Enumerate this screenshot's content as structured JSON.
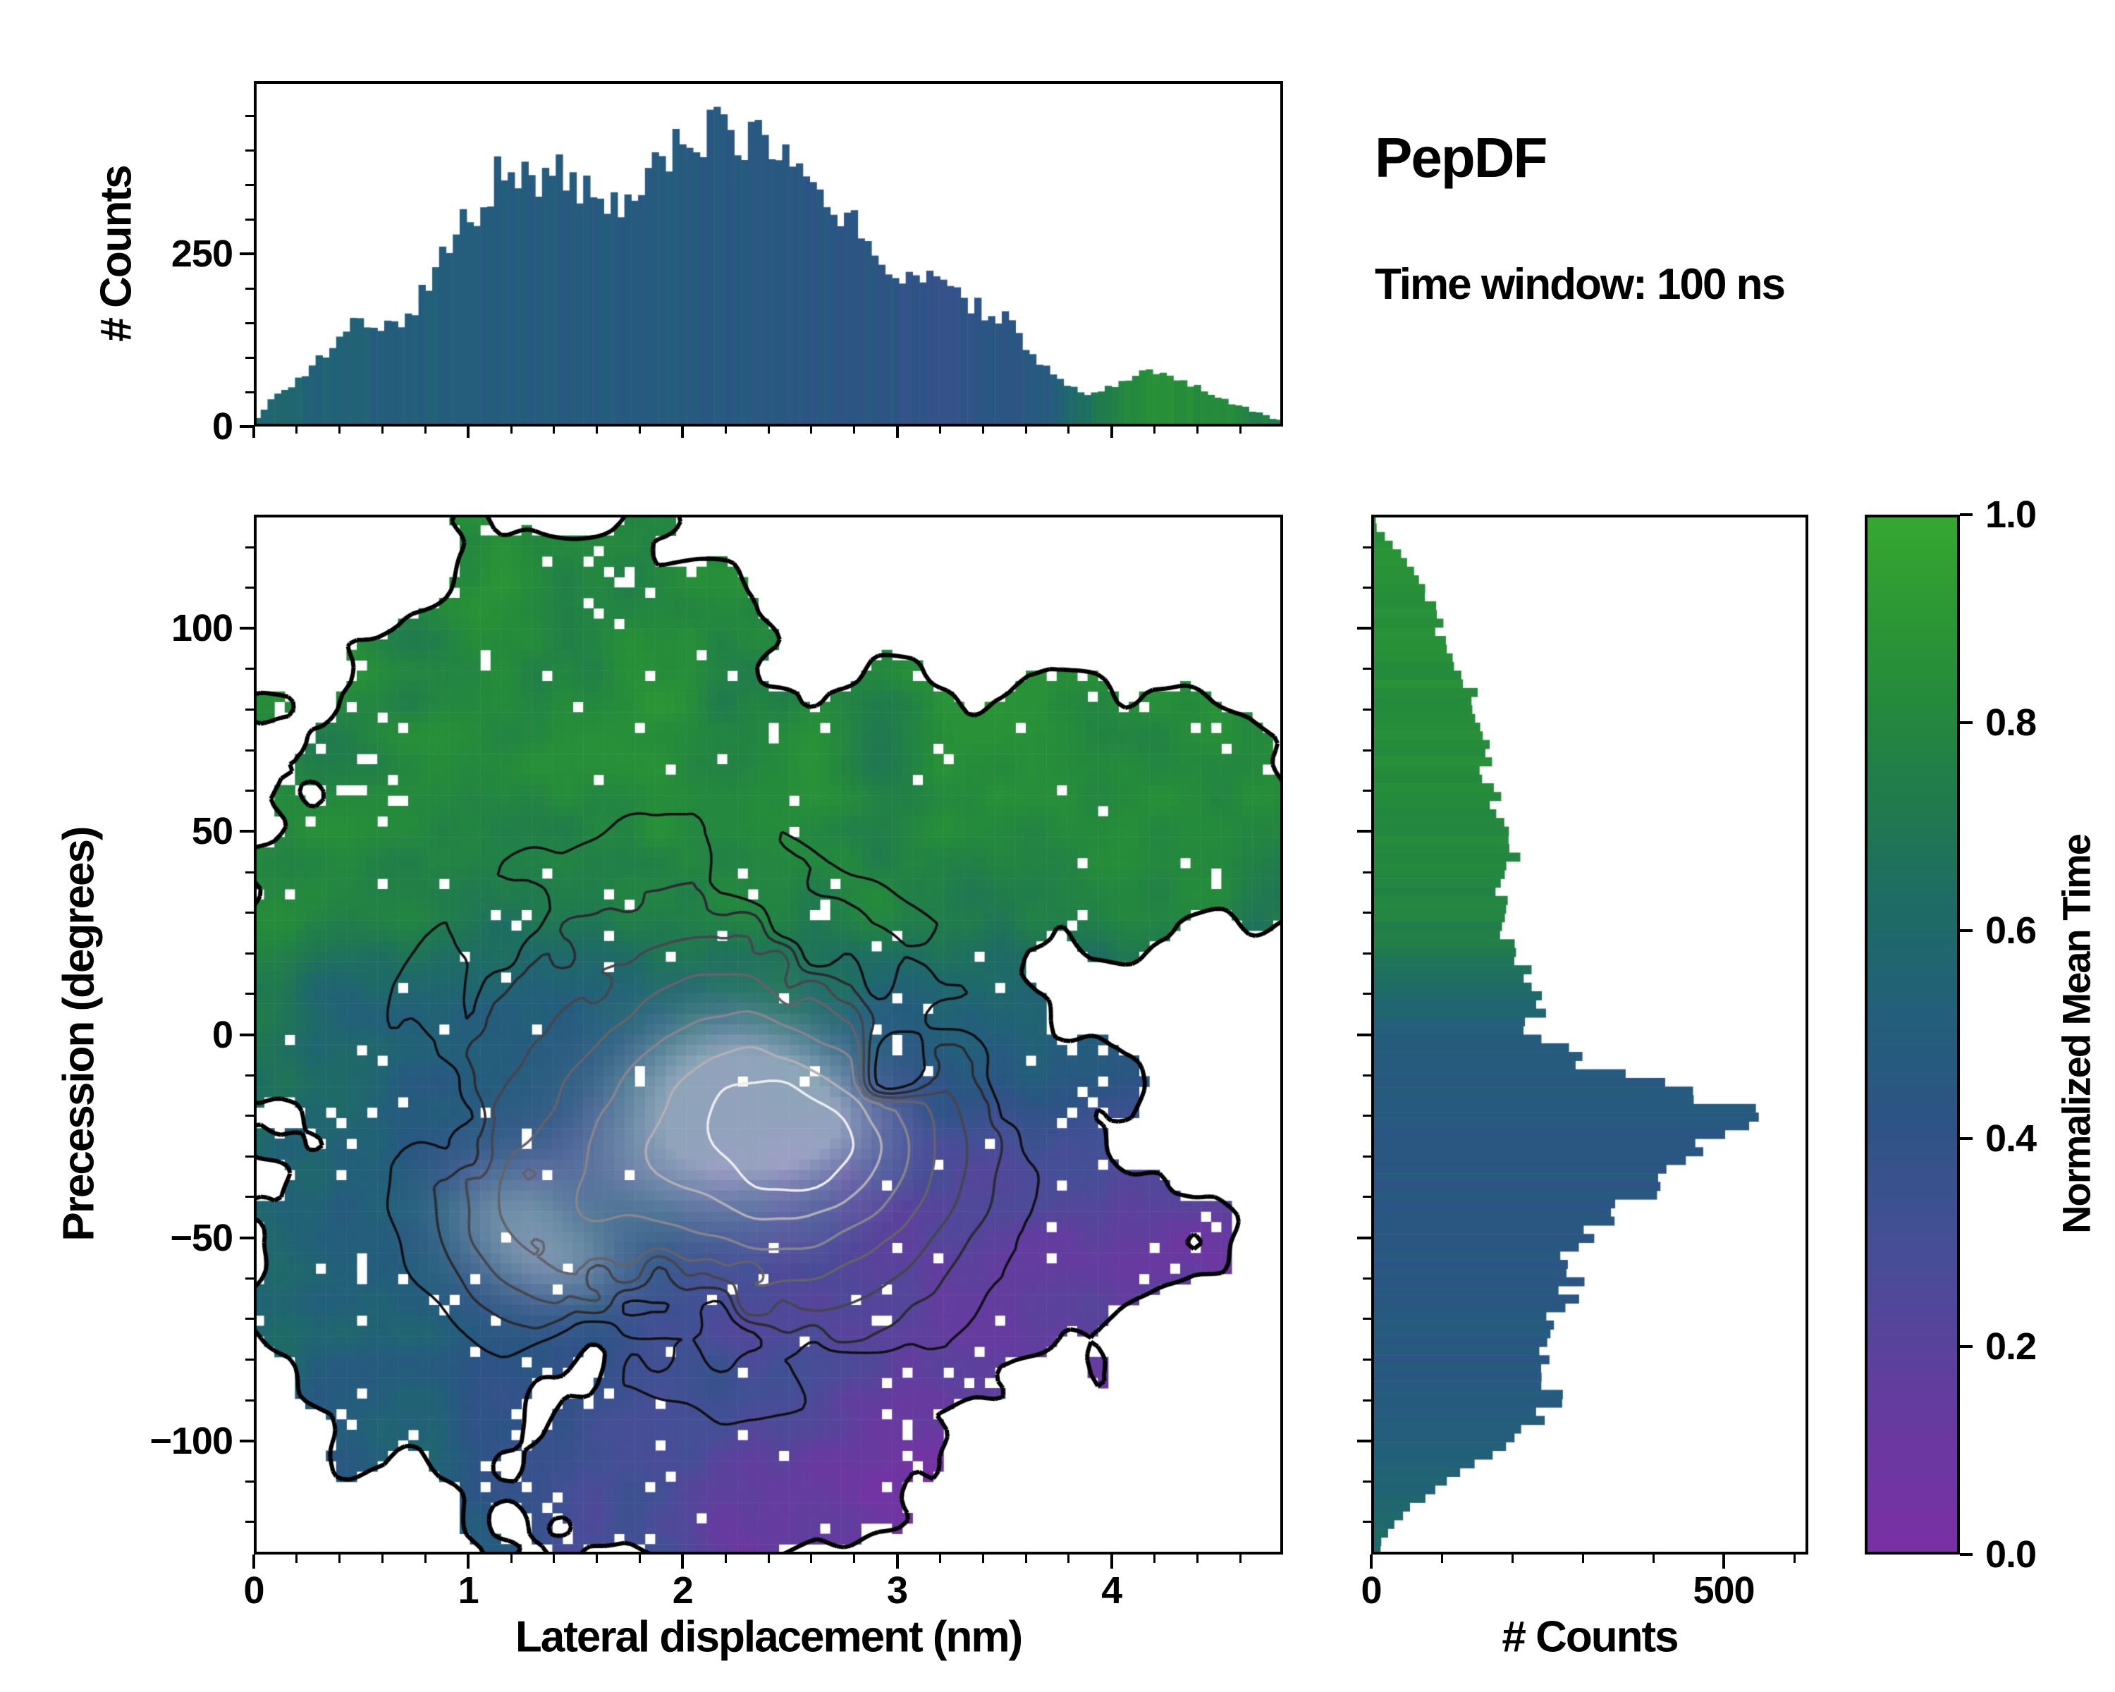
{
  "figure": {
    "title": "PepDF",
    "subtitle": "Time window: 100 ns",
    "background": "#ffffff",
    "text_color": "#000000"
  },
  "colormap": {
    "stops": [
      [
        0,
        "#7b2fa4"
      ],
      [
        0.15,
        "#643c9f"
      ],
      [
        0.3,
        "#454f96"
      ],
      [
        0.42,
        "#2c5484"
      ],
      [
        0.52,
        "#235f7b"
      ],
      [
        0.62,
        "#1e6b66"
      ],
      [
        0.72,
        "#207a4e"
      ],
      [
        0.82,
        "#258a3c"
      ],
      [
        0.92,
        "#2d9a34"
      ],
      [
        1,
        "#36a831"
      ]
    ]
  },
  "colorbar": {
    "label": "Normalized Mean Time",
    "min": 0,
    "max": 1,
    "ticks": [
      [
        0,
        "0.0"
      ],
      [
        0.2,
        "0.2"
      ],
      [
        0.4,
        "0.4"
      ],
      [
        0.6,
        "0.6"
      ],
      [
        0.8,
        "0.8"
      ],
      [
        1,
        "1.0"
      ]
    ]
  },
  "chart_data": [
    {
      "id": "top_histogram",
      "type": "bar",
      "ylabel": "# Counts",
      "xlim": [
        0,
        4.8
      ],
      "ylim": [
        0,
        500
      ],
      "yticks": [
        [
          0,
          "0"
        ],
        [
          250,
          "250"
        ]
      ],
      "bins": 150,
      "color_by": "Normalized Mean Time",
      "seed": 505,
      "envelope": [
        [
          0,
          8
        ],
        [
          0.05,
          25
        ],
        [
          0.1,
          45
        ],
        [
          0.15,
          55
        ],
        [
          0.2,
          65
        ],
        [
          0.25,
          80
        ],
        [
          0.3,
          95
        ],
        [
          0.35,
          110
        ],
        [
          0.4,
          130
        ],
        [
          0.45,
          150
        ],
        [
          0.5,
          172
        ],
        [
          0.55,
          130
        ],
        [
          0.6,
          138
        ],
        [
          0.65,
          148
        ],
        [
          0.7,
          152
        ],
        [
          0.75,
          160
        ],
        [
          0.8,
          205
        ],
        [
          0.85,
          235
        ],
        [
          0.9,
          262
        ],
        [
          0.95,
          280
        ],
        [
          1,
          300
        ],
        [
          1.05,
          322
        ],
        [
          1.1,
          345
        ],
        [
          1.15,
          368
        ],
        [
          1.2,
          392
        ],
        [
          1.25,
          360
        ],
        [
          1.3,
          348
        ],
        [
          1.35,
          355
        ],
        [
          1.4,
          362
        ],
        [
          1.45,
          368
        ],
        [
          1.5,
          352
        ],
        [
          1.55,
          340
        ],
        [
          1.6,
          335
        ],
        [
          1.65,
          330
        ],
        [
          1.7,
          318
        ],
        [
          1.75,
          310
        ],
        [
          1.8,
          335
        ],
        [
          1.85,
          360
        ],
        [
          1.9,
          382
        ],
        [
          1.95,
          398
        ],
        [
          2,
          408
        ],
        [
          2.05,
          412
        ],
        [
          2.1,
          420
        ],
        [
          2.15,
          430
        ],
        [
          2.2,
          418
        ],
        [
          2.25,
          412
        ],
        [
          2.3,
          420
        ],
        [
          2.35,
          408
        ],
        [
          2.4,
          398
        ],
        [
          2.45,
          390
        ],
        [
          2.5,
          378
        ],
        [
          2.55,
          365
        ],
        [
          2.6,
          330
        ],
        [
          2.65,
          322
        ],
        [
          2.7,
          318
        ],
        [
          2.75,
          308
        ],
        [
          2.8,
          298
        ],
        [
          2.85,
          272
        ],
        [
          2.9,
          252
        ],
        [
          2.95,
          238
        ],
        [
          3,
          228
        ],
        [
          3.05,
          220
        ],
        [
          3.1,
          212
        ],
        [
          3.15,
          218
        ],
        [
          3.2,
          224
        ],
        [
          3.25,
          205
        ],
        [
          3.3,
          192
        ],
        [
          3.35,
          178
        ],
        [
          3.4,
          165
        ],
        [
          3.45,
          160
        ],
        [
          3.5,
          158
        ],
        [
          3.55,
          138
        ],
        [
          3.6,
          118
        ],
        [
          3.65,
          100
        ],
        [
          3.7,
          85
        ],
        [
          3.75,
          70
        ],
        [
          3.8,
          58
        ],
        [
          3.85,
          48
        ],
        [
          3.9,
          44
        ],
        [
          3.95,
          50
        ],
        [
          4,
          56
        ],
        [
          4.05,
          64
        ],
        [
          4.1,
          70
        ],
        [
          4.15,
          76
        ],
        [
          4.2,
          80
        ],
        [
          4.25,
          76
        ],
        [
          4.3,
          72
        ],
        [
          4.35,
          64
        ],
        [
          4.4,
          58
        ],
        [
          4.45,
          50
        ],
        [
          4.5,
          44
        ],
        [
          4.55,
          36
        ],
        [
          4.6,
          30
        ],
        [
          4.65,
          24
        ],
        [
          4.7,
          18
        ],
        [
          4.75,
          12
        ],
        [
          4.8,
          8
        ]
      ],
      "mean_time": [
        [
          0,
          0.6
        ],
        [
          0.3,
          0.55
        ],
        [
          0.6,
          0.52
        ],
        [
          1,
          0.5
        ],
        [
          1.5,
          0.48
        ],
        [
          2,
          0.47
        ],
        [
          2.5,
          0.45
        ],
        [
          2.9,
          0.43
        ],
        [
          3.2,
          0.4
        ],
        [
          3.5,
          0.42
        ],
        [
          3.7,
          0.48
        ],
        [
          3.85,
          0.62
        ],
        [
          4,
          0.78
        ],
        [
          4.2,
          0.86
        ],
        [
          4.5,
          0.82
        ],
        [
          4.8,
          0.72
        ]
      ]
    },
    {
      "id": "main_heatmap",
      "type": "heatmap",
      "xlabel": "Lateral displacement (nm)",
      "ylabel": "Precession (degrees)",
      "color_meaning": "Normalized Mean Time",
      "xlim": [
        0,
        4.8
      ],
      "ylim": [
        -128,
        128
      ],
      "xticks": [
        [
          0,
          "0"
        ],
        [
          1,
          "1"
        ],
        [
          2,
          "2"
        ],
        [
          3,
          "3"
        ],
        [
          4,
          "4"
        ]
      ],
      "yticks": [
        [
          100,
          "100"
        ],
        [
          50,
          "50"
        ],
        [
          0,
          "0"
        ],
        [
          -50,
          "−50"
        ],
        [
          -100,
          "−100"
        ]
      ],
      "grid": [
        100,
        100
      ],
      "seed": 42,
      "blobs": [
        [
          1.5,
          70,
          1.35,
          60,
          1.0
        ],
        [
          0.55,
          20,
          0.9,
          45,
          0.95
        ],
        [
          3.1,
          55,
          1.1,
          45,
          0.95
        ],
        [
          4.15,
          55,
          0.85,
          42,
          0.9
        ],
        [
          1.9,
          -15,
          1.8,
          75,
          1.0
        ],
        [
          2.9,
          -45,
          1.5,
          55,
          1.0
        ],
        [
          0.8,
          -60,
          1.0,
          62,
          0.95
        ],
        [
          2.2,
          -100,
          1.2,
          35,
          0.9
        ]
      ],
      "value_profile": [
        [
          -128,
          0.48
        ],
        [
          -70,
          0.45
        ],
        [
          -30,
          0.45
        ],
        [
          -5,
          0.5
        ],
        [
          10,
          0.58
        ],
        [
          30,
          0.74
        ],
        [
          60,
          0.8
        ],
        [
          128,
          0.82
        ]
      ],
      "purple_region": {
        "x0": 1.2,
        "xs": 2.4,
        "y0": -5,
        "ys": 50,
        "strength": 0.32
      },
      "purple_bottom": {
        "x0": 0.8,
        "xs": 1.5,
        "y0": -85,
        "ys": 25,
        "strength": 0.18
      },
      "green_left": {
        "strength": 0.18
      },
      "noise_amp": 0.22,
      "hole_base": 0.02,
      "hole_edge": 0.08,
      "density_peaks": [
        [
          2.2,
          -15,
          0.9,
          40,
          0.9
        ],
        [
          1.3,
          -47,
          0.55,
          28,
          0.7
        ],
        [
          2.8,
          -28,
          0.7,
          30,
          0.75
        ],
        [
          1.9,
          10,
          1.4,
          60,
          0.5
        ],
        [
          2.4,
          -60,
          1.0,
          40,
          0.6
        ],
        [
          1.9,
          -20,
          2.0,
          90,
          0.35
        ]
      ],
      "contour_levels": [
        0.22,
        0.34,
        0.46,
        0.58,
        0.7,
        0.8,
        0.88
      ],
      "contour_colors": [
        "#101014",
        "#2b2b31",
        "#46464e",
        "#63636c",
        "#85858e",
        "#b0b0b6",
        "#ededf0"
      ],
      "outline_color": "#000000",
      "light_spots": [
        [
          2.25,
          -12,
          0.45,
          16,
          0.5
        ],
        [
          2.5,
          -22,
          0.35,
          12,
          0.4
        ],
        [
          1.2,
          -45,
          0.3,
          14,
          0.35
        ],
        [
          1.45,
          -57,
          0.3,
          10,
          0.3
        ],
        [
          2.0,
          -30,
          0.5,
          18,
          0.3
        ]
      ],
      "regions_note": "high normalized mean time (green) at positive precession and left edge; intermediate (blue) near 0 to -90 degrees; low (purple) at lateral displacement > ~2 nm and negative precession"
    },
    {
      "id": "right_histogram",
      "type": "bar",
      "orientation": "horizontal",
      "xlabel": "# Counts",
      "xlim": [
        0,
        620
      ],
      "ylim": [
        -128,
        128
      ],
      "xticks": [
        [
          0,
          "0"
        ],
        [
          500,
          "500"
        ]
      ],
      "bins": 120,
      "color_by": "Normalized Mean Time",
      "seed": 606,
      "envelope": [
        [
          -125,
          14
        ],
        [
          -120,
          38
        ],
        [
          -115,
          68
        ],
        [
          -110,
          108
        ],
        [
          -105,
          148
        ],
        [
          -100,
          188
        ],
        [
          -95,
          228
        ],
        [
          -90,
          268
        ],
        [
          -85,
          246
        ],
        [
          -80,
          234
        ],
        [
          -75,
          244
        ],
        [
          -70,
          258
        ],
        [
          -65,
          278
        ],
        [
          -60,
          295
        ],
        [
          -55,
          285
        ],
        [
          -50,
          298
        ],
        [
          -45,
          328
        ],
        [
          -40,
          368
        ],
        [
          -35,
          428
        ],
        [
          -30,
          462
        ],
        [
          -25,
          505
        ],
        [
          -20,
          540
        ],
        [
          -15,
          448
        ],
        [
          -10,
          348
        ],
        [
          -5,
          278
        ],
        [
          0,
          238
        ],
        [
          5,
          228
        ],
        [
          10,
          228
        ],
        [
          15,
          218
        ],
        [
          20,
          208
        ],
        [
          25,
          198
        ],
        [
          30,
          184
        ],
        [
          35,
          178
        ],
        [
          40,
          188
        ],
        [
          45,
          208
        ],
        [
          50,
          198
        ],
        [
          55,
          182
        ],
        [
          60,
          168
        ],
        [
          65,
          162
        ],
        [
          70,
          178
        ],
        [
          75,
          152
        ],
        [
          80,
          138
        ],
        [
          85,
          148
        ],
        [
          90,
          118
        ],
        [
          95,
          108
        ],
        [
          100,
          98
        ],
        [
          105,
          88
        ],
        [
          110,
          76
        ],
        [
          115,
          62
        ],
        [
          120,
          35
        ],
        [
          125,
          6
        ]
      ],
      "mean_time": [
        [
          -125,
          0.62
        ],
        [
          -115,
          0.58
        ],
        [
          -100,
          0.52
        ],
        [
          -85,
          0.47
        ],
        [
          -60,
          0.45
        ],
        [
          -30,
          0.44
        ],
        [
          -10,
          0.47
        ],
        [
          0,
          0.52
        ],
        [
          5,
          0.55
        ],
        [
          12,
          0.62
        ],
        [
          20,
          0.72
        ],
        [
          30,
          0.78
        ],
        [
          50,
          0.82
        ],
        [
          80,
          0.84
        ],
        [
          125,
          0.86
        ]
      ]
    }
  ]
}
